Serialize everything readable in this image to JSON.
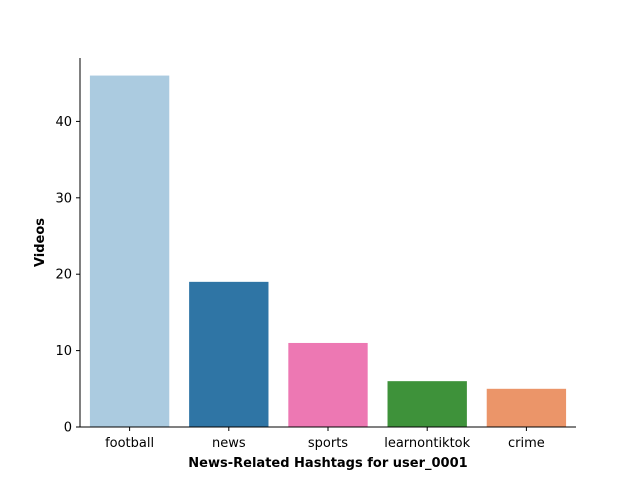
{
  "chart_data": {
    "type": "bar",
    "categories": [
      "football",
      "news",
      "sports",
      "learnontiktok",
      "crime"
    ],
    "values": [
      46,
      19,
      11,
      6,
      5
    ],
    "colors": [
      "#abcbe0",
      "#2f75a5",
      "#ed78b3",
      "#3e923a",
      "#eb9569"
    ],
    "title": "",
    "xlabel": "News-Related Hashtags for user_0001",
    "ylabel": "Videos",
    "ylim": [
      0,
      48.3
    ],
    "yticks": [
      0,
      10,
      20,
      30,
      40
    ],
    "grid": false,
    "legend": "none"
  }
}
